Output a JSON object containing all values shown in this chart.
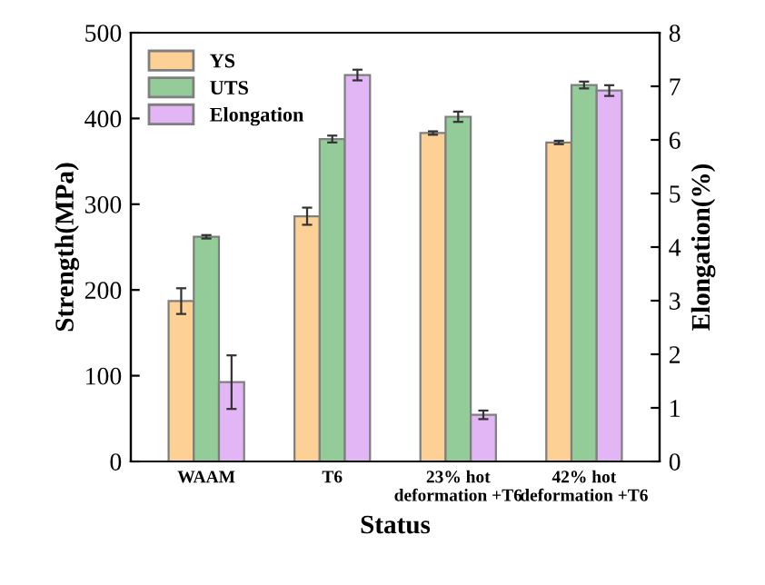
{
  "chart_data": {
    "type": "bar",
    "xlabel": "Status",
    "ylabel": "Strength(MPa)",
    "y2label": "Elongation(%)",
    "categories": [
      "WAAM",
      "T6",
      "23% hot\ndeformation +T6",
      "42% hot\ndeformation +T6"
    ],
    "series": [
      {
        "name": "YS",
        "color": "#fdd096",
        "values": [
          187,
          286,
          383,
          372
        ],
        "errors": [
          15,
          10,
          2,
          2
        ]
      },
      {
        "name": "UTS",
        "color": "#93cc98",
        "values": [
          262,
          376,
          402,
          439
        ],
        "errors": [
          2,
          4,
          6,
          4
        ]
      },
      {
        "name": "Elongation",
        "color": "#e2b6f4",
        "axis": "y2",
        "values": [
          1.48,
          7.21,
          0.87,
          6.92
        ],
        "errors": [
          0.5,
          0.1,
          0.08,
          0.1
        ]
      }
    ],
    "ylim": [
      0,
      500
    ],
    "yticks": [
      0,
      100,
      200,
      300,
      400,
      500
    ],
    "y2lim": [
      0,
      8
    ],
    "y2ticks": [
      0,
      1,
      2,
      3,
      4,
      5,
      6,
      7,
      8
    ],
    "legend": "top left",
    "grid": false
  }
}
